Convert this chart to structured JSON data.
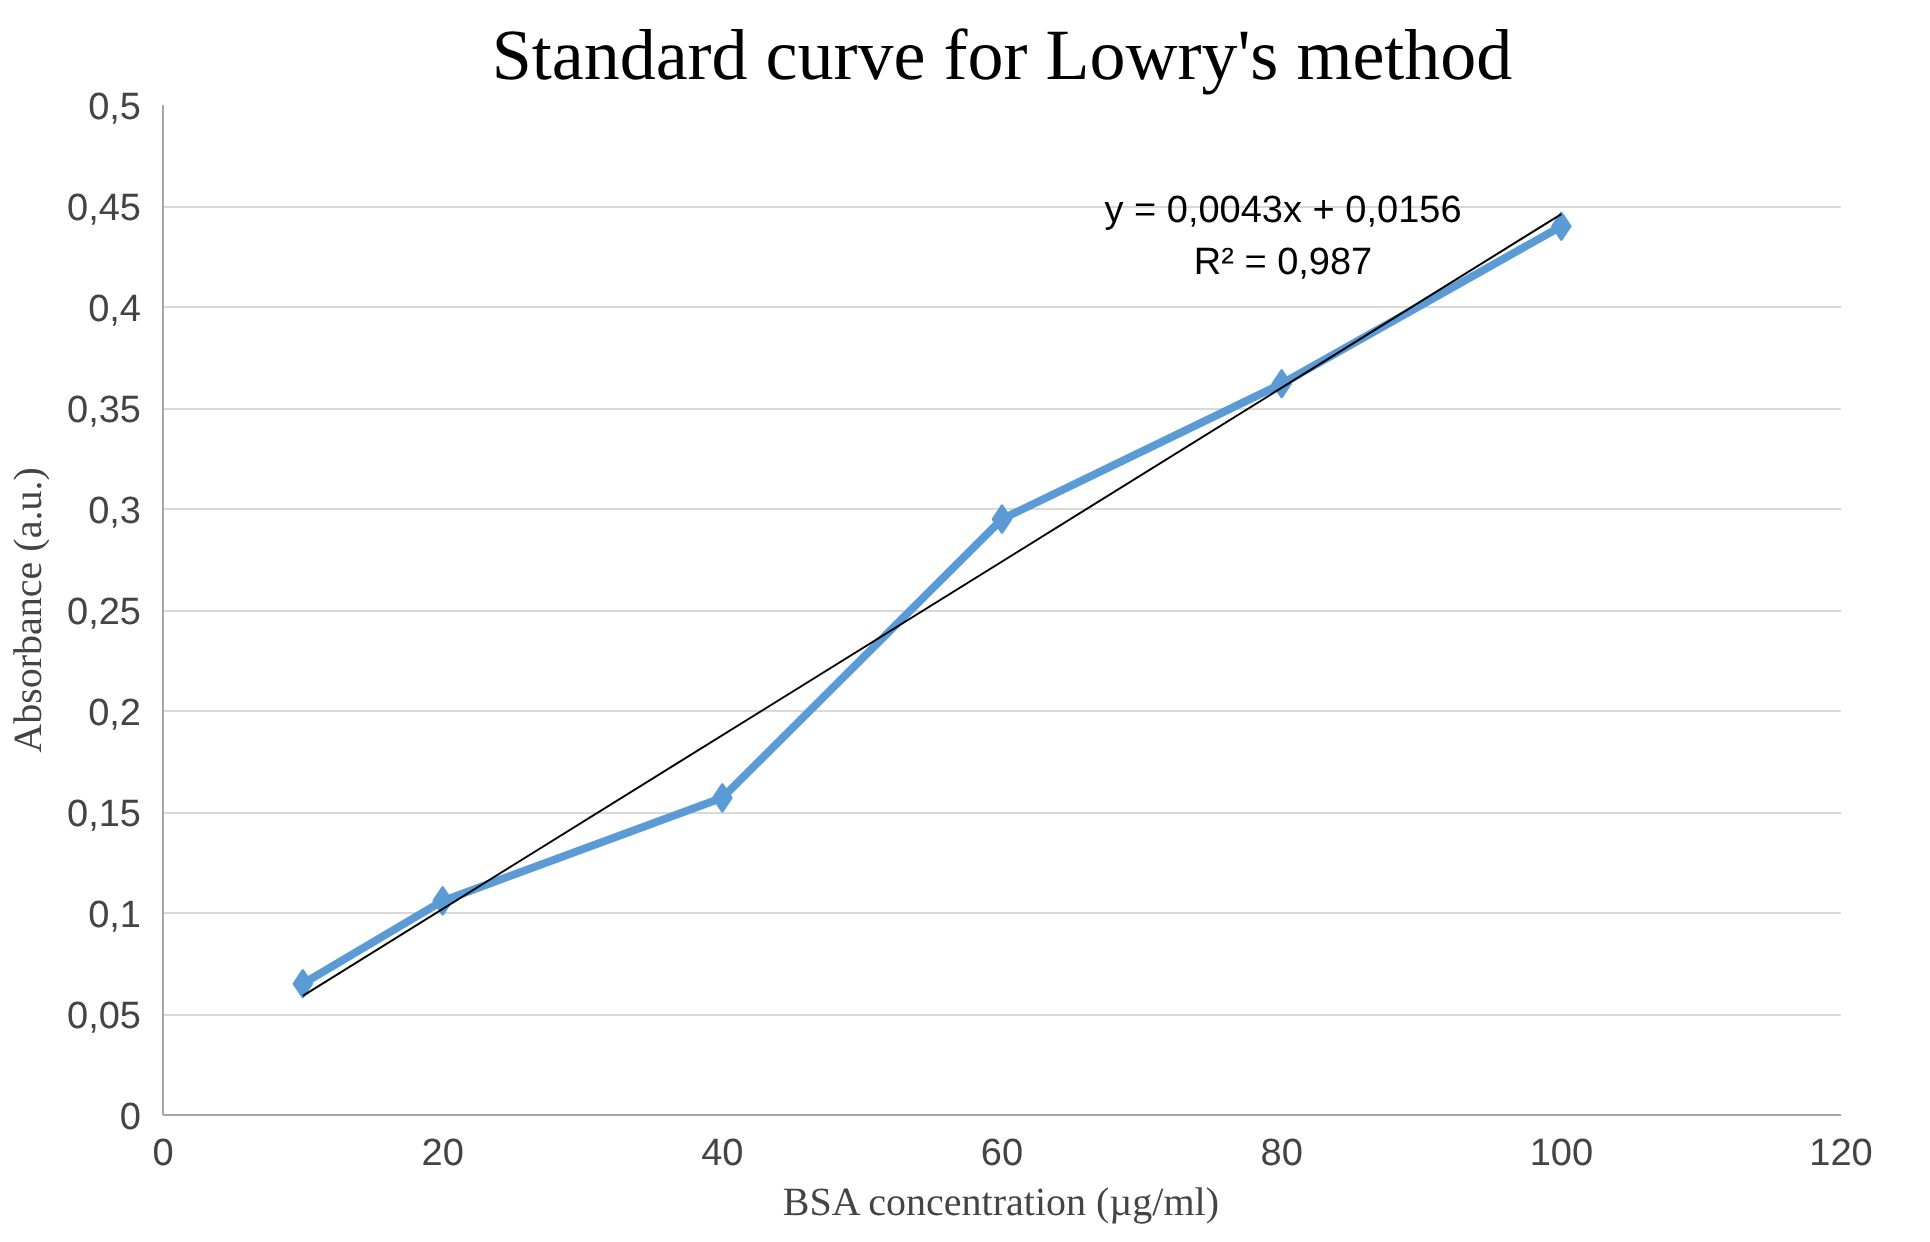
{
  "chart_data": {
    "type": "line",
    "title": "Standard curve for Lowry's method",
    "xlabel": "BSA concentration (µg/ml)",
    "ylabel": "Absorbance (a.u.)",
    "xlim": [
      0,
      120
    ],
    "xticks": [
      0,
      20,
      40,
      60,
      80,
      100,
      120
    ],
    "ylim": [
      0,
      0.5
    ],
    "yticks": [
      0,
      {
        "value": 0.05,
        "label": "0,05"
      },
      {
        "value": 0.1,
        "label": "0,1"
      },
      {
        "value": 0.15,
        "label": "0,15"
      },
      {
        "value": 0.2,
        "label": "0,2"
      },
      {
        "value": 0.25,
        "label": "0,25"
      },
      {
        "value": 0.3,
        "label": "0,3"
      },
      {
        "value": 0.35,
        "label": "0,35"
      },
      {
        "value": 0.4,
        "label": "0,4"
      },
      {
        "value": 0.45,
        "label": "0,45"
      },
      {
        "value": 0.5,
        "label": "0,5"
      }
    ],
    "grid": "y",
    "series": [
      {
        "x": [
          10,
          20,
          40,
          60,
          80,
          100
        ],
        "values": [
          0.065,
          0.106,
          0.157,
          0.295,
          0.362,
          0.44
        ],
        "color": "#5b9bd5",
        "marker": "diamond",
        "line_style": "solid"
      },
      {
        "x": [
          10,
          100
        ],
        "values": [
          0.059,
          0.446
        ],
        "color": "#000000",
        "marker": "none",
        "line_style": "solid"
      }
    ],
    "annotations": [
      "y = 0,0043x + 0,0156",
      "R² = 0,987"
    ]
  }
}
